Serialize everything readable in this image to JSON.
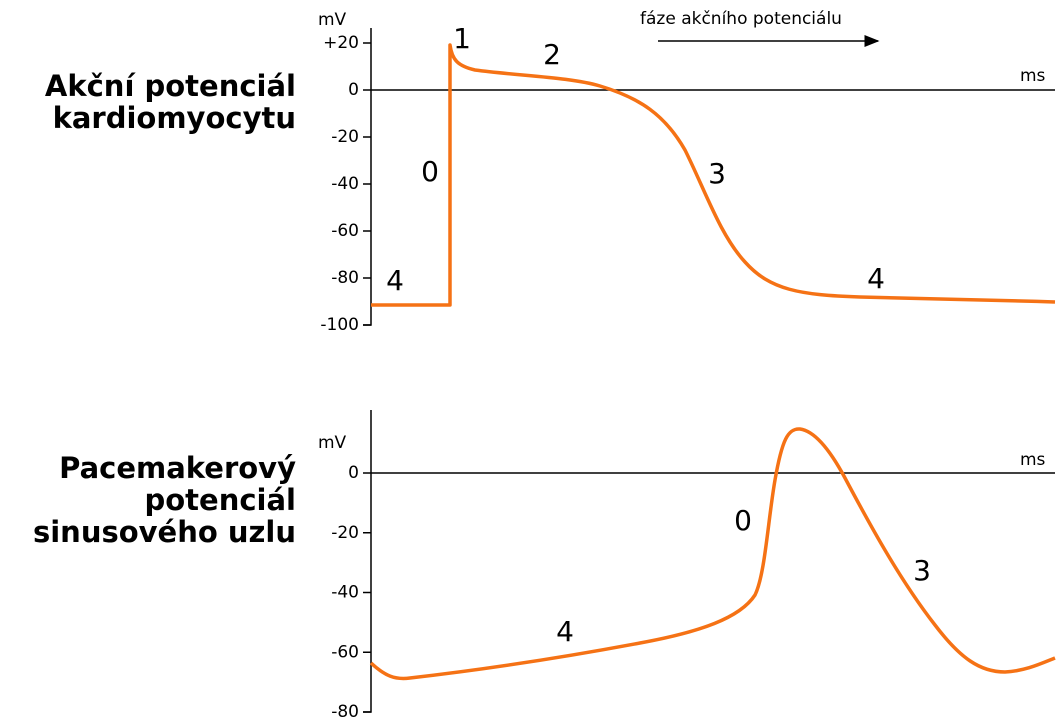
{
  "header": {
    "phase_caption": "fáze akčního potenciálu"
  },
  "panels": [
    {
      "title": [
        "Akční potenciál",
        "kardiomyocytu"
      ],
      "y_unit": "mV",
      "x_unit": "ms",
      "yticks": [
        "+20",
        "0",
        "-20",
        "-40",
        "-60",
        "-80",
        "-100"
      ],
      "phases": [
        "1",
        "2",
        "0",
        "3",
        "4",
        "4"
      ]
    },
    {
      "title": [
        "Pacemakerový",
        "potenciál",
        "sinusového uzlu"
      ],
      "y_unit": "mV",
      "x_unit": "ms",
      "yticks": [
        "0",
        "-20",
        "-40",
        "-60",
        "-80"
      ],
      "phases": [
        "0",
        "3",
        "4"
      ]
    }
  ]
}
